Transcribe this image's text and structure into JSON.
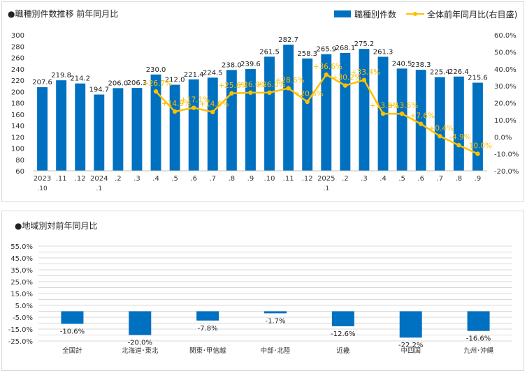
{
  "chart_data": [
    {
      "type": "bar+line",
      "title": "●職種別件数推移  前年同月比",
      "legend": {
        "position": "top-right",
        "bar_label": "職種別件数",
        "line_label": "全体前年同月比(右目盛)"
      },
      "categories": [
        "2023\n.10",
        ".11",
        ".12",
        "2024\n.1",
        ".2",
        ".3",
        ".4",
        ".5",
        ".6",
        ".7",
        ".8",
        ".9",
        ".10",
        ".11",
        ".12",
        "2025\n.1",
        ".2",
        ".3",
        ".4",
        ".5",
        ".6",
        ".7",
        ".8",
        ".9"
      ],
      "bars": {
        "name": "職種別件数",
        "values": [
          207.6,
          219.8,
          214.2,
          194.7,
          206.0,
          206.3,
          230.0,
          212.0,
          221.4,
          224.5,
          238.0,
          239.6,
          261.5,
          282.7,
          258.3,
          265.9,
          268.1,
          275.2,
          261.3,
          240.5,
          238.3,
          225.4,
          226.4,
          215.6
        ],
        "labels": [
          "207.6",
          "219.8",
          "214.2",
          "194.7",
          "206.0",
          "206.3",
          "230.0",
          "212.0",
          "221.4",
          "224.5",
          "238.0",
          "239.6",
          "261.5",
          "282.7",
          "258.3",
          "265.9",
          "268.1",
          "275.2",
          "261.3",
          "240.5",
          "238.3",
          "225.4",
          "226.4",
          "215.6"
        ],
        "color": "#0070c0"
      },
      "line": {
        "name": "全体前年同月比(右目盛)",
        "values": [
          null,
          null,
          null,
          null,
          null,
          null,
          26.7,
          14.9,
          17.1,
          14.6,
          25.6,
          26.0,
          26.0,
          28.6,
          20.6,
          36.6,
          30.2,
          33.4,
          13.6,
          13.6,
          7.6,
          0.4,
          -4.9,
          -10.0
        ],
        "labels": [
          null,
          null,
          null,
          null,
          null,
          null,
          "+26.7%",
          "+14.9%",
          "+17.1%",
          "+14.6%",
          "+25.6%",
          "+26.0%",
          "+26.0%",
          "+28.6%",
          "+20.6%",
          "+36.6%",
          "+30.2%",
          "+33.4%",
          "+13.6%",
          "+13.6%",
          "+7.6%",
          "+0.4%",
          "-4.9%",
          "-10.0%"
        ],
        "color": "#ffc000"
      },
      "y_left": {
        "range": [
          60,
          300
        ],
        "ticks": [
          "60",
          "80",
          "100",
          "120",
          "140",
          "160",
          "180",
          "200",
          "220",
          "240",
          "260",
          "280",
          "300"
        ]
      },
      "y_right": {
        "range": [
          -20,
          60
        ],
        "ticks": [
          "-20.0%",
          "-10.0%",
          "0.0%",
          "10.0%",
          "20.0%",
          "30.0%",
          "40.0%",
          "50.0%",
          "60.0%"
        ]
      },
      "grid": false
    },
    {
      "type": "bar",
      "title": "●地域別対前年同月比",
      "categories": [
        "全国計",
        "北海道･東北",
        "関東･甲信越",
        "中部･北陸",
        "近畿",
        "中四国",
        "九州･沖縄"
      ],
      "values": [
        -10.6,
        -20.0,
        -7.8,
        -1.7,
        -12.6,
        -22.2,
        -16.6
      ],
      "labels": [
        "-10.6%",
        "-20.0%",
        "-7.8%",
        "-1.7%",
        "-12.6%",
        "-22.2%",
        "-16.6%"
      ],
      "y": {
        "range": [
          -25,
          55
        ],
        "ticks": [
          "-25.0%",
          "-15.0%",
          "-5.0%",
          "5.0%",
          "15.0%",
          "25.0%",
          "35.0%",
          "45.0%",
          "55.0%"
        ],
        "minor_ticks": [
          "-25.0%",
          "-20.0%",
          "-15.0%",
          "-10.0%",
          "-5.0%",
          "0.0%",
          "5.0%",
          "10.0%",
          "15.0%",
          "20.0%",
          "25.0%",
          "30.0%",
          "35.0%",
          "40.0%",
          "45.0%",
          "50.0%",
          "55.0%"
        ]
      },
      "grid": true,
      "color": "#0070c0"
    }
  ]
}
